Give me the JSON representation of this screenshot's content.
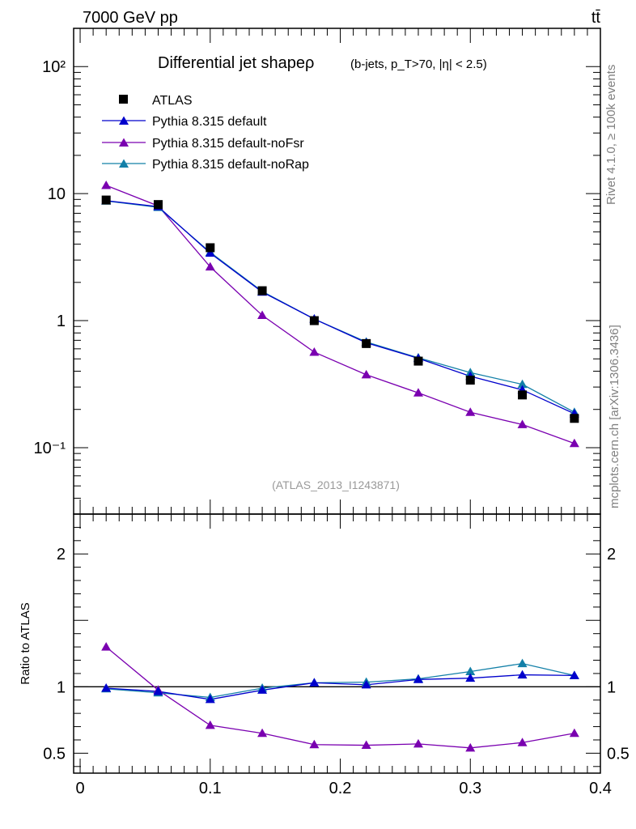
{
  "header": {
    "energy_label": "7000 GeV pp",
    "process_label": "tt̄",
    "rivet_label": "Rivet 4.1.0, ≥ 100k events",
    "site_label": "mcplots.cern.ch [arXiv:1306.3436]"
  },
  "chart_data": [
    {
      "type": "line",
      "panel": "main",
      "title": "Differential jet shapeρ",
      "subtitle": "(b-jets, p_T>70, |η| < 2.5)",
      "analysis_label": "(ATLAS_2013_I1243871)",
      "yscale": "log",
      "ylim": [
        0.03,
        200
      ],
      "xlim": [
        -0.005,
        0.4
      ],
      "y_ticks": [
        {
          "value": 0.1,
          "label": "10⁻¹"
        },
        {
          "value": 1,
          "label": "1"
        },
        {
          "value": 10,
          "label": "10"
        },
        {
          "value": 100,
          "label": "10²"
        }
      ],
      "legend_position": "top-left",
      "x": [
        0.02,
        0.06,
        0.1,
        0.14,
        0.18,
        0.22,
        0.26,
        0.3,
        0.34,
        0.38
      ],
      "series": [
        {
          "name": "ATLAS",
          "marker": "square",
          "color": "#000000",
          "values": [
            8.9,
            8.2,
            3.75,
            1.72,
            1.0,
            0.66,
            0.48,
            0.34,
            0.26,
            0.17
          ]
        },
        {
          "name": "Pythia 8.315 default",
          "marker": "triangle",
          "color": "#0000cc",
          "values": [
            8.8,
            7.9,
            3.4,
            1.68,
            1.03,
            0.67,
            0.505,
            0.365,
            0.285,
            0.185
          ]
        },
        {
          "name": "Pythia 8.315 default-noFsr",
          "marker": "triangle",
          "color": "#7a00b0",
          "values": [
            11.6,
            8.0,
            2.65,
            1.1,
            0.565,
            0.375,
            0.27,
            0.19,
            0.152,
            0.108
          ]
        },
        {
          "name": "Pythia 8.315 default-noRap",
          "marker": "triangle",
          "color": "#1380a8",
          "values": [
            8.75,
            7.8,
            3.45,
            1.7,
            1.03,
            0.68,
            0.51,
            0.39,
            0.315,
            0.19
          ]
        }
      ]
    },
    {
      "type": "line",
      "panel": "ratio",
      "ylabel": "Ratio to ATLAS",
      "yscale": "linear",
      "ylim": [
        0.35,
        2.3
      ],
      "xlim": [
        -0.005,
        0.4
      ],
      "y_ticks": [
        {
          "value": 0.5,
          "label": "0.5"
        },
        {
          "value": 1,
          "label": "1"
        },
        {
          "value": 2,
          "label": "2"
        }
      ],
      "x_ticks": [
        {
          "value": 0,
          "label": "0"
        },
        {
          "value": 0.1,
          "label": "0.1"
        },
        {
          "value": 0.2,
          "label": "0.2"
        },
        {
          "value": 0.3,
          "label": "0.3"
        },
        {
          "value": 0.4,
          "label": "0.4"
        }
      ],
      "reference": 1,
      "x": [
        0.02,
        0.06,
        0.1,
        0.14,
        0.18,
        0.22,
        0.26,
        0.3,
        0.34,
        0.38
      ],
      "series": [
        {
          "name": "Pythia 8.315 default",
          "color": "#0000cc",
          "values": [
            0.99,
            0.965,
            0.905,
            0.975,
            1.03,
            1.015,
            1.055,
            1.065,
            1.09,
            1.085
          ]
        },
        {
          "name": "Pythia 8.315 default-noFsr",
          "color": "#7a00b0",
          "values": [
            1.3,
            0.975,
            0.71,
            0.65,
            0.565,
            0.56,
            0.57,
            0.54,
            0.58,
            0.65
          ]
        },
        {
          "name": "Pythia 8.315 default-noRap",
          "color": "#1380a8",
          "values": [
            0.985,
            0.955,
            0.92,
            0.99,
            1.03,
            1.035,
            1.06,
            1.115,
            1.175,
            1.085
          ]
        }
      ]
    }
  ]
}
